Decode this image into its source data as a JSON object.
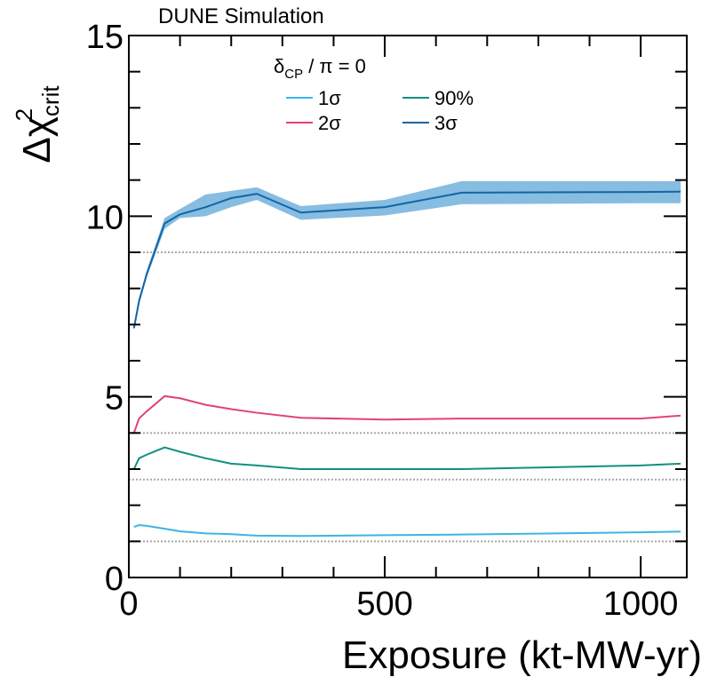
{
  "header": {
    "label": "DUNE Simulation"
  },
  "legend": {
    "title_main": "δ",
    "title_sub": "CP",
    "title_rest": " / π = 0"
  },
  "chart_data": {
    "type": "line",
    "xlabel": "Exposure (kt-MW-yr)",
    "ylabel_main": "Δχ",
    "ylabel_sup": "2",
    "ylabel_sub": "crit",
    "xlim": [
      0,
      1090
    ],
    "ylim": [
      0,
      15
    ],
    "x_ticks": [
      0,
      500,
      1000
    ],
    "y_ticks": [
      0,
      5,
      10,
      15
    ],
    "x_tick_labels": [
      "0",
      "500",
      "1000"
    ],
    "y_tick_labels": [
      "0",
      "5",
      "10",
      "15"
    ],
    "reference_lines": [
      1.0,
      2.71,
      4.0,
      9.0
    ],
    "series": [
      {
        "name": "1σ",
        "color": "#3cb4e6",
        "x": [
          10,
          20,
          35,
          70,
          100,
          150,
          200,
          250,
          336,
          500,
          650,
          1000,
          1078
        ],
        "y": [
          1.4,
          1.45,
          1.43,
          1.35,
          1.28,
          1.22,
          1.2,
          1.16,
          1.15,
          1.17,
          1.19,
          1.25,
          1.27
        ]
      },
      {
        "name": "90%",
        "color": "#138f80",
        "x": [
          10,
          20,
          35,
          70,
          100,
          150,
          200,
          250,
          336,
          500,
          650,
          1000,
          1078
        ],
        "y": [
          3.0,
          3.3,
          3.4,
          3.6,
          3.48,
          3.3,
          3.15,
          3.1,
          3.0,
          3.0,
          3.0,
          3.1,
          3.15
        ]
      },
      {
        "name": "2σ",
        "color": "#e0427a",
        "x": [
          10,
          20,
          35,
          70,
          100,
          150,
          200,
          250,
          336,
          500,
          650,
          1000,
          1078
        ],
        "y": [
          4.0,
          4.4,
          4.6,
          5.02,
          4.96,
          4.78,
          4.66,
          4.56,
          4.42,
          4.37,
          4.4,
          4.4,
          4.48
        ]
      },
      {
        "name": "3σ",
        "color": "#1265a8",
        "band_color": "#86bde1",
        "x": [
          10,
          20,
          35,
          70,
          100,
          150,
          200,
          250,
          336,
          500,
          650,
          1000,
          1078
        ],
        "y": [
          6.9,
          7.65,
          8.4,
          9.8,
          10.05,
          10.25,
          10.5,
          10.62,
          10.1,
          10.25,
          10.65,
          10.67,
          10.68
        ],
        "y_low": [
          6.85,
          7.55,
          8.3,
          9.65,
          9.95,
          10.0,
          10.25,
          10.45,
          9.9,
          10.02,
          10.33,
          10.36,
          10.36
        ],
        "y_high": [
          6.95,
          7.75,
          8.5,
          9.95,
          10.2,
          10.6,
          10.7,
          10.8,
          10.28,
          10.45,
          10.97,
          10.97,
          10.97
        ]
      }
    ]
  }
}
